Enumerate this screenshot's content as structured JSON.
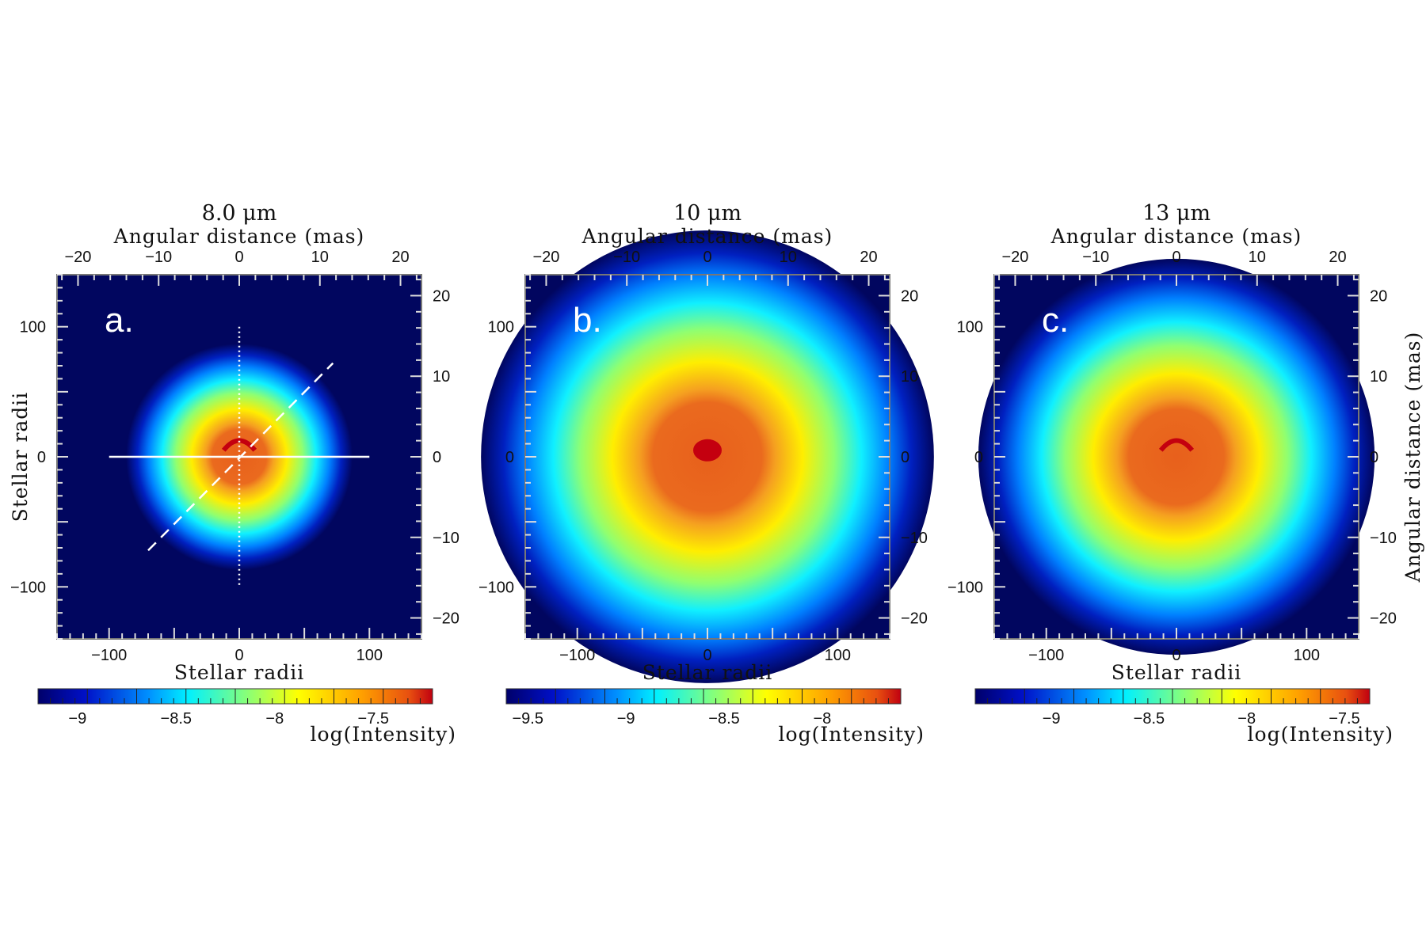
{
  "chart_data": [
    {
      "type": "heatmap",
      "panel_label": "a.",
      "title": "8.0 μm",
      "top_xlabel": "Angular distance (mas)",
      "xlabel": "Stellar radii",
      "ylabel": "Stellar radii",
      "right_ylabel": "",
      "xlim": [
        -140,
        140
      ],
      "ylim": [
        -140,
        140
      ],
      "mas_lim": [
        -22.6,
        22.6
      ],
      "x_ticks": [
        "−100",
        "0",
        "100"
      ],
      "x_tick_values": [
        -100,
        0,
        100
      ],
      "y_ticks": [
        "−100",
        "0",
        "100"
      ],
      "y_tick_values": [
        -100,
        0,
        100
      ],
      "mas_ticks": [
        "−20",
        "−10",
        "0",
        "10",
        "20"
      ],
      "mas_tick_values": [
        -20,
        -10,
        0,
        10,
        20
      ],
      "blob_radius": 60,
      "core": "arc",
      "colorbar": {
        "label": "log(Intensity)",
        "range": [
          -9.2,
          -7.2
        ],
        "ticks": [
          "−9",
          "−8.5",
          "−8",
          "−7.5"
        ],
        "tick_values": [
          -9,
          -8.5,
          -8,
          -7.5
        ]
      },
      "overlay_lines": [
        {
          "style": "solid",
          "from": [
            -100,
            0
          ],
          "to": [
            100,
            0
          ]
        },
        {
          "style": "dotted",
          "from": [
            0,
            100
          ],
          "to": [
            0,
            -100
          ]
        },
        {
          "style": "dashed",
          "from": [
            -70,
            -72
          ],
          "to": [
            72,
            72
          ]
        }
      ]
    },
    {
      "type": "heatmap",
      "panel_label": "b.",
      "title": "10 μm",
      "top_xlabel": "Angular distance (mas)",
      "xlabel": "Stellar radii",
      "ylabel": "",
      "right_ylabel": "",
      "xlim": [
        -140,
        140
      ],
      "ylim": [
        -140,
        140
      ],
      "mas_lim": [
        -22.6,
        22.6
      ],
      "x_ticks": [
        "−100",
        "0",
        "100"
      ],
      "x_tick_values": [
        -100,
        0,
        100
      ],
      "y_ticks": [
        "−100",
        "0",
        "100"
      ],
      "y_tick_values": [
        -100,
        0,
        100
      ],
      "mas_ticks": [
        "−20",
        "−10",
        "0",
        "10",
        "20"
      ],
      "mas_tick_values": [
        -20,
        -10,
        0,
        10,
        20
      ],
      "blob_radius": 120,
      "core": "spot",
      "colorbar": {
        "label": "log(Intensity)",
        "range": [
          -9.61,
          -7.6
        ],
        "ticks": [
          "−9.5",
          "−9",
          "−8.5",
          "−8"
        ],
        "tick_values": [
          -9.5,
          -9,
          -8.5,
          -8
        ]
      },
      "overlay_lines": []
    },
    {
      "type": "heatmap",
      "panel_label": "c.",
      "title": "13 μm",
      "top_xlabel": "Angular distance (mas)",
      "xlabel": "Stellar radii",
      "ylabel": "",
      "right_ylabel": "Angular distance (mas)",
      "xlim": [
        -140,
        140
      ],
      "ylim": [
        -140,
        140
      ],
      "mas_lim": [
        -22.6,
        22.6
      ],
      "x_ticks": [
        "−100",
        "0",
        "100"
      ],
      "x_tick_values": [
        -100,
        0,
        100
      ],
      "y_ticks": [
        "−100",
        "0",
        "100"
      ],
      "y_tick_values": [
        -100,
        0,
        100
      ],
      "mas_ticks": [
        "−20",
        "−10",
        "0",
        "10",
        "20"
      ],
      "mas_tick_values": [
        -20,
        -10,
        0,
        10,
        20
      ],
      "blob_radius": 105,
      "core": "arc",
      "colorbar": {
        "label": "log(Intensity)",
        "range": [
          -9.39,
          -7.37
        ],
        "ticks": [
          "−9",
          "−8.5",
          "−8",
          "−7.5"
        ],
        "tick_values": [
          -9,
          -8.5,
          -8,
          -7.5
        ]
      },
      "overlay_lines": []
    }
  ],
  "colors": {
    "background": "#01065f",
    "core": "#c4000f"
  }
}
